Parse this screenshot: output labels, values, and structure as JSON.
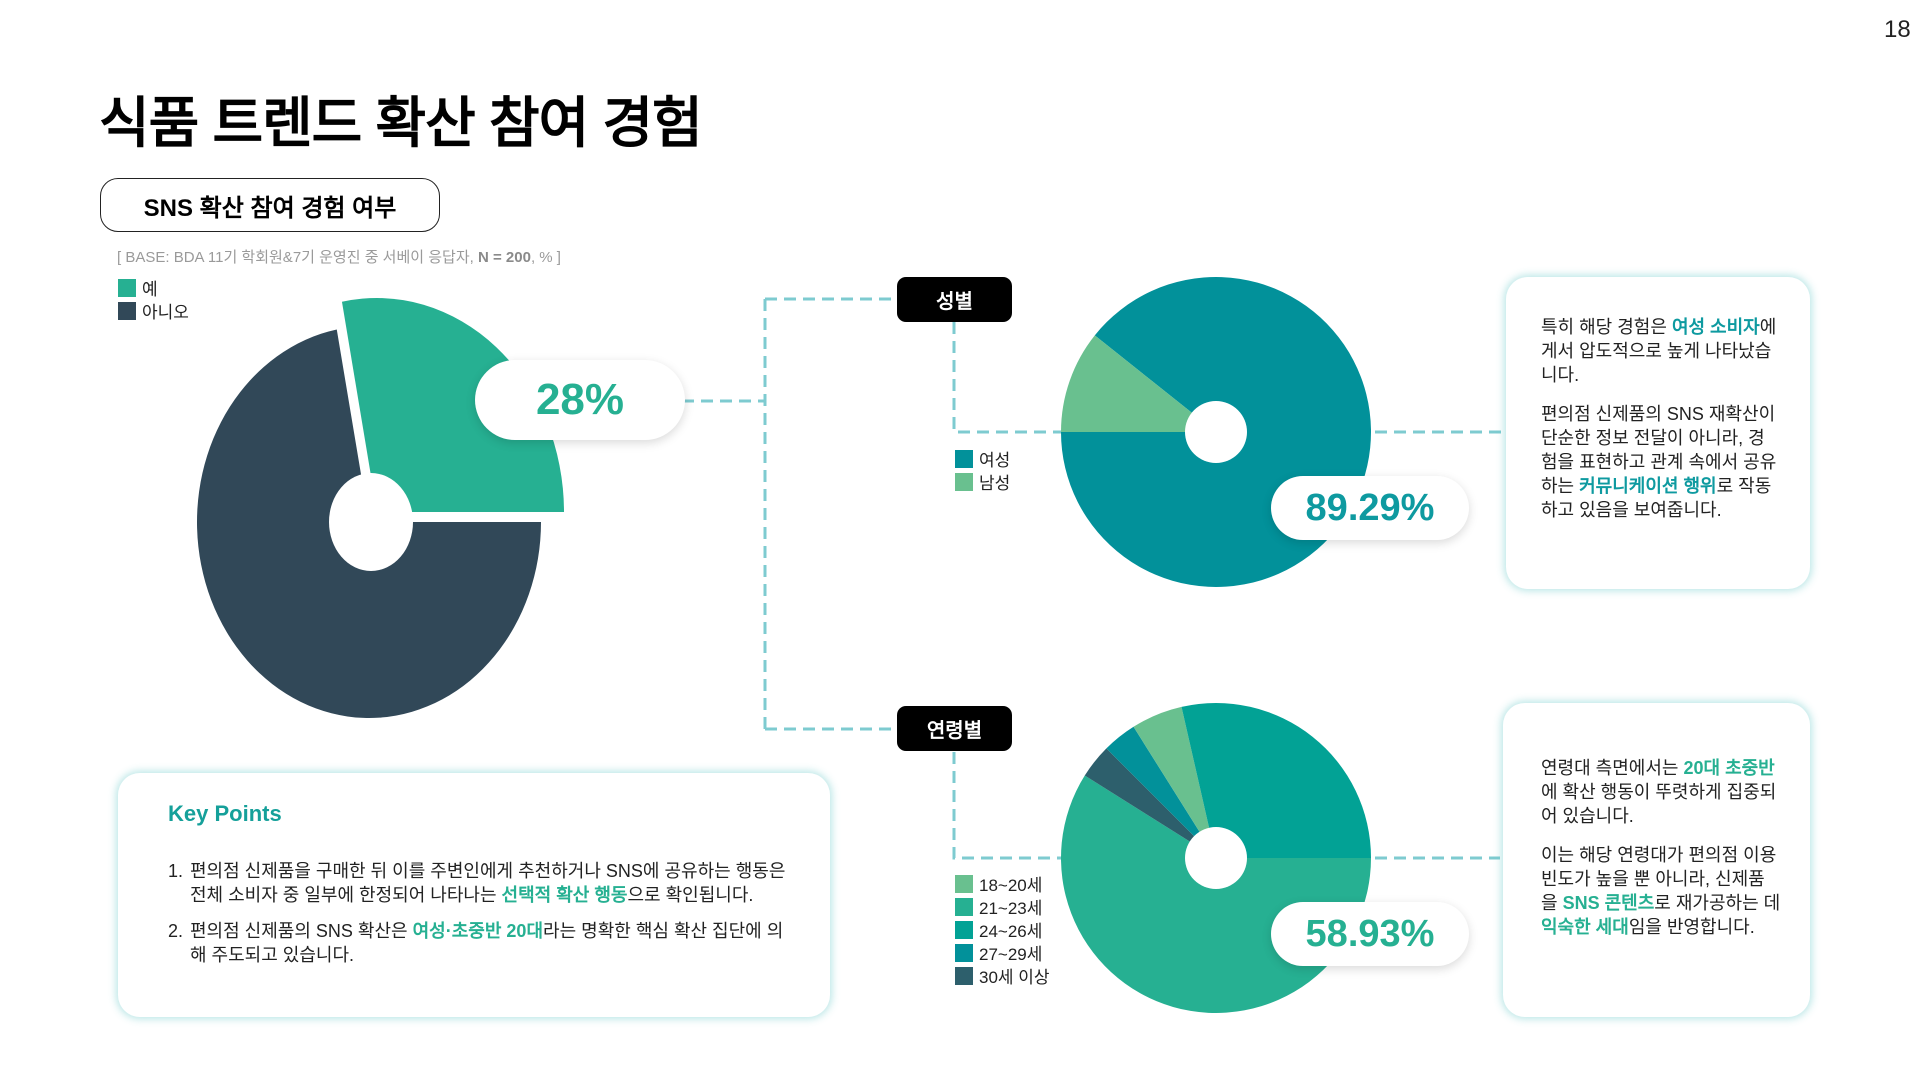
{
  "page_number": "18",
  "title": "식품 트렌드 확산 참여 경험",
  "subtitle": "SNS 확산 참여 경험 여부",
  "base_note": {
    "prefix": "[ BASE: BDA 11기 학회원&7기 운영진 중 서베이 응답자, ",
    "n": "N = 200",
    "suffix": ", % ]"
  },
  "colors": {
    "yes": "#26b092",
    "no": "#314858",
    "female": "#02919a",
    "male": "#69c08f",
    "age_18_20": "#69c08f",
    "age_21_23": "#26b092",
    "age_24_26": "#02a295",
    "age_27_29": "#02919a",
    "age_30_plus": "#2d5f6c",
    "connector": "#7ecbd0"
  },
  "main_chart": {
    "legend": [
      {
        "label": "예",
        "color": "#26b092"
      },
      {
        "label": "아니오",
        "color": "#314858"
      }
    ],
    "callout": "28%"
  },
  "gender_chart": {
    "tag": "성별",
    "legend": [
      {
        "label": "여성",
        "color": "#02919a"
      },
      {
        "label": "남성",
        "color": "#69c08f"
      }
    ],
    "callout": "89.29%"
  },
  "age_chart": {
    "tag": "연령별",
    "legend": [
      {
        "label": "18~20세",
        "color": "#69c08f"
      },
      {
        "label": "21~23세",
        "color": "#26b092"
      },
      {
        "label": "24~26세",
        "color": "#02a295"
      },
      {
        "label": "27~29세",
        "color": "#02919a"
      },
      {
        "label": "30세 이상",
        "color": "#2d5f6c"
      }
    ],
    "callout": "58.93%"
  },
  "gender_card": {
    "p1": [
      {
        "t": "특히 해당 경험은 ",
        "h": ""
      },
      {
        "t": "여성 소비자",
        "h": "teal"
      },
      {
        "t": "에게서 압도적으로 높게 나타났습니다.",
        "h": ""
      }
    ],
    "p2": [
      {
        "t": "편의점 신제품의 SNS 재확산이 단순한 정보 전달이 아니라, 경험을 표현하고 관계 속에서 공유하는 ",
        "h": ""
      },
      {
        "t": "커뮤니케이션 행위",
        "h": "teal"
      },
      {
        "t": "로 작동하고 있음을 보여줍니다.",
        "h": ""
      }
    ]
  },
  "age_card": {
    "p1": [
      {
        "t": "연령대 측면에서는 ",
        "h": ""
      },
      {
        "t": "20대 초중반",
        "h": "green"
      },
      {
        "t": "에 확산 행동이 뚜렷하게 집중되어 있습니다.",
        "h": ""
      }
    ],
    "p2": [
      {
        "t": "이는 해당 연령대가 편의점 이용 빈도가 높을 뿐 아니라, 신제품을 ",
        "h": ""
      },
      {
        "t": "SNS 콘텐츠",
        "h": "green"
      },
      {
        "t": "로 재가공하는 데 ",
        "h": ""
      },
      {
        "t": "익숙한 세대",
        "h": "green"
      },
      {
        "t": "임을 반영합니다.",
        "h": ""
      }
    ]
  },
  "key_points": {
    "title": "Key Points",
    "items": [
      {
        "num": "1.",
        "parts": [
          {
            "t": "편의점 신제품을 구매한 뒤 이를 주변인에게 추천하거나 SNS에 공유하는 행동은 전체 소비자 중 일부에 한정되어 나타나는 ",
            "h": ""
          },
          {
            "t": "선택적 확산 행동",
            "h": "green"
          },
          {
            "t": "으로 확인됩니다.",
            "h": ""
          }
        ]
      },
      {
        "num": "2.",
        "parts": [
          {
            "t": "편의점 신제품의 SNS 확산은 ",
            "h": ""
          },
          {
            "t": "여성·초중반 20대",
            "h": "green"
          },
          {
            "t": "라는 명확한 핵심 확산 집단에 의해 주도되고 있습니다.",
            "h": ""
          }
        ]
      }
    ]
  },
  "chart_data": [
    {
      "type": "pie",
      "title": "SNS 확산 참여 경험 여부",
      "categories": [
        "예",
        "아니오"
      ],
      "values": [
        28,
        72
      ],
      "unit": "%",
      "n": 200,
      "annotations": [
        "28%"
      ],
      "legend_position": "top-left",
      "donut": true,
      "exploded": [
        "예"
      ]
    },
    {
      "type": "pie",
      "title": "성별",
      "categories": [
        "여성",
        "남성"
      ],
      "values": [
        89.29,
        10.71
      ],
      "unit": "%",
      "annotations": [
        "89.29%"
      ],
      "legend_position": "left",
      "donut": true
    },
    {
      "type": "pie",
      "title": "연령별",
      "categories": [
        "18~20세",
        "21~23세",
        "24~26세",
        "27~29세",
        "30세 이상"
      ],
      "values": [
        5.36,
        58.93,
        28.57,
        3.57,
        3.57
      ],
      "unit": "%",
      "annotations": [
        "58.93%"
      ],
      "legend_position": "left",
      "donut": true
    }
  ]
}
